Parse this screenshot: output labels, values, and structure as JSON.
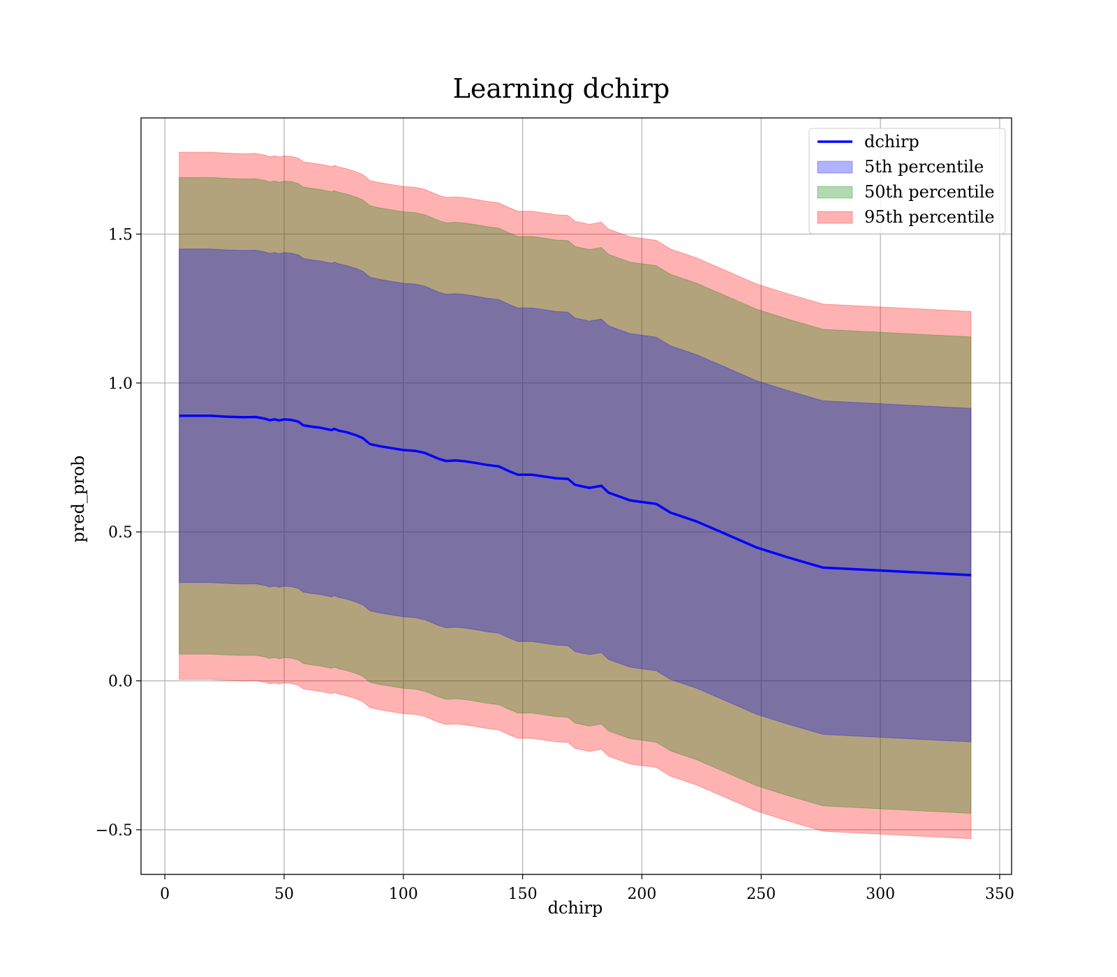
{
  "chart_data": {
    "type": "line",
    "title": "Learning dchirp",
    "xlabel": "dchirp",
    "ylabel": "pred_prob",
    "xlim": [
      -10,
      355
    ],
    "ylim": [
      -0.65,
      1.89
    ],
    "xticks": [
      0,
      50,
      100,
      150,
      200,
      250,
      300,
      350
    ],
    "yticks": [
      -0.5,
      0.0,
      0.5,
      1.0,
      1.5
    ],
    "xtick_labels": [
      "0",
      "50",
      "100",
      "150",
      "200",
      "250",
      "300",
      "350"
    ],
    "ytick_labels": [
      "−0.5",
      "0.0",
      "0.5",
      "1.0",
      "1.5"
    ],
    "grid": true,
    "legend_position": "top-right",
    "x": [
      6,
      12,
      19,
      26,
      33,
      38,
      42,
      44,
      46,
      48,
      50,
      53,
      56,
      58,
      62,
      65,
      68,
      70,
      71,
      73,
      76,
      80,
      83,
      86,
      90,
      96,
      100,
      105,
      109,
      112,
      115,
      118,
      122,
      126,
      130,
      135,
      140,
      144,
      148,
      154,
      160,
      164,
      169,
      172,
      178,
      183,
      186,
      195,
      206,
      212,
      223,
      236,
      248,
      261,
      276,
      338
    ],
    "series": [
      {
        "name": "dchirp",
        "kind": "line",
        "color": "#0000ff",
        "values": [
          0.89,
          0.89,
          0.89,
          0.887,
          0.885,
          0.886,
          0.88,
          0.875,
          0.878,
          0.874,
          0.878,
          0.876,
          0.87,
          0.858,
          0.853,
          0.85,
          0.845,
          0.842,
          0.846,
          0.84,
          0.835,
          0.825,
          0.815,
          0.795,
          0.788,
          0.78,
          0.775,
          0.772,
          0.765,
          0.755,
          0.745,
          0.738,
          0.74,
          0.737,
          0.732,
          0.725,
          0.72,
          0.705,
          0.692,
          0.692,
          0.685,
          0.68,
          0.678,
          0.658,
          0.648,
          0.655,
          0.632,
          0.606,
          0.594,
          0.565,
          0.535,
          0.49,
          0.448,
          0.415,
          0.38,
          0.355
        ]
      },
      {
        "name": "5th percentile",
        "kind": "band",
        "color": "#0000ff",
        "alpha": 0.3,
        "offset": 0.56
      },
      {
        "name": "50th percentile",
        "kind": "band",
        "color": "#008000",
        "alpha": 0.3,
        "offset": 0.8
      },
      {
        "name": "95th percentile",
        "kind": "band",
        "color": "#ff0000",
        "alpha": 0.3,
        "offset": 0.885
      }
    ]
  }
}
